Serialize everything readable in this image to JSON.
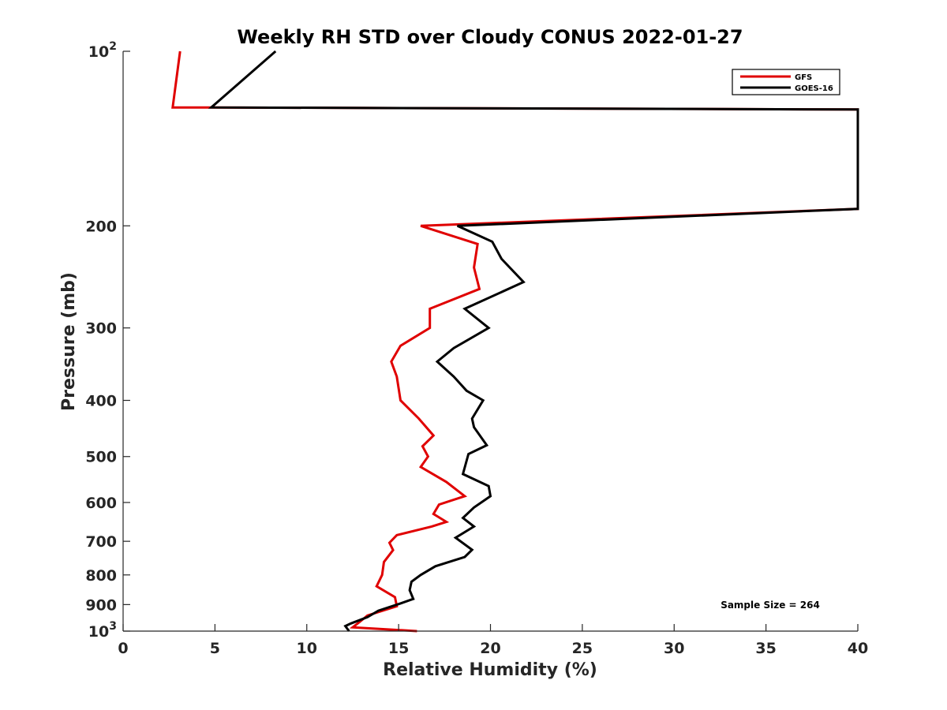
{
  "chart_data": {
    "type": "line",
    "title": "Weekly RH STD over Cloudy CONUS 2022-01-27",
    "xlabel": "Relative Humidity (%)",
    "ylabel": "Pressure (mb)",
    "xlim": [
      0,
      40
    ],
    "ylim": [
      100,
      1000
    ],
    "y_scale": "log",
    "y_reversed": true,
    "grid": false,
    "legend_position": "top-right",
    "x_ticks": [
      {
        "value": 0,
        "label": "0"
      },
      {
        "value": 5,
        "label": "5"
      },
      {
        "value": 10,
        "label": "10"
      },
      {
        "value": 15,
        "label": "15"
      },
      {
        "value": 20,
        "label": "20"
      },
      {
        "value": 25,
        "label": "25"
      },
      {
        "value": 30,
        "label": "30"
      },
      {
        "value": 35,
        "label": "35"
      },
      {
        "value": 40,
        "label": "40"
      }
    ],
    "y_ticks": [
      {
        "value": 100,
        "label": "10",
        "sup": "2"
      },
      {
        "value": 200,
        "label": "200"
      },
      {
        "value": 300,
        "label": "300"
      },
      {
        "value": 400,
        "label": "400"
      },
      {
        "value": 500,
        "label": "500"
      },
      {
        "value": 600,
        "label": "600"
      },
      {
        "value": 700,
        "label": "700"
      },
      {
        "value": 800,
        "label": "800"
      },
      {
        "value": 900,
        "label": "900"
      },
      {
        "value": 1000,
        "label": "10",
        "sup": "3"
      }
    ],
    "series": [
      {
        "name": "GFS",
        "color": "#e00000",
        "points": [
          [
            3.1,
            100
          ],
          [
            2.7,
            125
          ],
          [
            4.8,
            125
          ],
          [
            40,
            126
          ],
          [
            40,
            187
          ],
          [
            16.2,
            200
          ],
          [
            19.3,
            215
          ],
          [
            19.1,
            236
          ],
          [
            19.4,
            257
          ],
          [
            16.7,
            278
          ],
          [
            16.7,
            300
          ],
          [
            15.1,
            322
          ],
          [
            14.6,
            343
          ],
          [
            14.9,
            364
          ],
          [
            15.1,
            400
          ],
          [
            16.1,
            430
          ],
          [
            16.9,
            460
          ],
          [
            16.3,
            480
          ],
          [
            16.6,
            500
          ],
          [
            16.2,
            521
          ],
          [
            17.6,
            553
          ],
          [
            18.6,
            585
          ],
          [
            17.2,
            605
          ],
          [
            16.9,
            628
          ],
          [
            17.6,
            648
          ],
          [
            16.8,
            660
          ],
          [
            14.9,
            683
          ],
          [
            14.5,
            704
          ],
          [
            14.7,
            725
          ],
          [
            14.2,
            760
          ],
          [
            14.1,
            800
          ],
          [
            13.8,
            837
          ],
          [
            14.8,
            874
          ],
          [
            14.9,
            906
          ],
          [
            13.3,
            940
          ],
          [
            12.9,
            963
          ],
          [
            12.5,
            985
          ],
          [
            16.0,
            1000
          ]
        ]
      },
      {
        "name": "GOES-16",
        "color": "#000000",
        "points": [
          [
            8.3,
            100
          ],
          [
            4.8,
            125
          ],
          [
            40,
            126
          ],
          [
            40,
            187
          ],
          [
            18.2,
            200
          ],
          [
            20.1,
            213
          ],
          [
            20.6,
            228
          ],
          [
            21.8,
            250
          ],
          [
            18.6,
            278
          ],
          [
            19.9,
            300
          ],
          [
            18.0,
            325
          ],
          [
            17.1,
            343
          ],
          [
            18.0,
            364
          ],
          [
            18.7,
            385
          ],
          [
            19.6,
            400
          ],
          [
            19.0,
            430
          ],
          [
            19.1,
            445
          ],
          [
            19.8,
            478
          ],
          [
            18.8,
            495
          ],
          [
            18.5,
            536
          ],
          [
            19.9,
            562
          ],
          [
            20.0,
            585
          ],
          [
            19.1,
            612
          ],
          [
            18.5,
            638
          ],
          [
            19.1,
            660
          ],
          [
            18.1,
            690
          ],
          [
            19.0,
            724
          ],
          [
            18.6,
            745
          ],
          [
            17.0,
            773
          ],
          [
            16.2,
            800
          ],
          [
            15.7,
            822
          ],
          [
            15.6,
            850
          ],
          [
            15.8,
            880
          ],
          [
            15.1,
            896
          ],
          [
            13.9,
            922
          ],
          [
            13.3,
            946
          ],
          [
            12.4,
            970
          ],
          [
            12.1,
            980
          ],
          [
            12.3,
            1000
          ]
        ]
      }
    ],
    "annotations": [
      {
        "text": "Sample Size = 264"
      }
    ]
  }
}
